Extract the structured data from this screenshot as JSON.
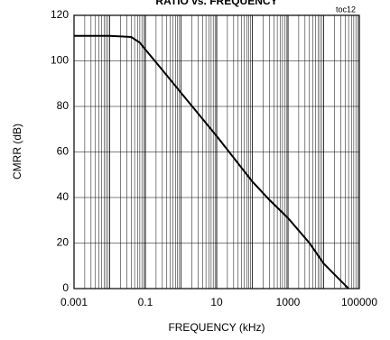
{
  "chart_data": {
    "type": "line",
    "title": "RATIO vs. FREQUENCY",
    "annotation": "toc12",
    "x_label": "FREQUENCY (kHz)",
    "y_label": "CMRR (dB)",
    "x": [
      0.001,
      0.01,
      0.04,
      0.07,
      0.1,
      0.3,
      1,
      10,
      100,
      300,
      1000,
      4000,
      10000,
      50000
    ],
    "series": [
      {
        "name": "CMRR",
        "color": "#000000",
        "values": [
          111,
          111,
          110.5,
          108,
          105,
          96,
          86,
          67,
          47,
          39,
          31,
          20,
          11,
          0
        ]
      }
    ],
    "xscale": "log",
    "xlim": [
      0.001,
      100000
    ],
    "xticks": [
      0.001,
      0.1,
      10,
      1000,
      100000
    ],
    "ylim": [
      0,
      120
    ],
    "yticks": [
      0,
      20,
      40,
      60,
      80,
      100,
      120
    ],
    "grid": true,
    "minor_grid": true
  }
}
